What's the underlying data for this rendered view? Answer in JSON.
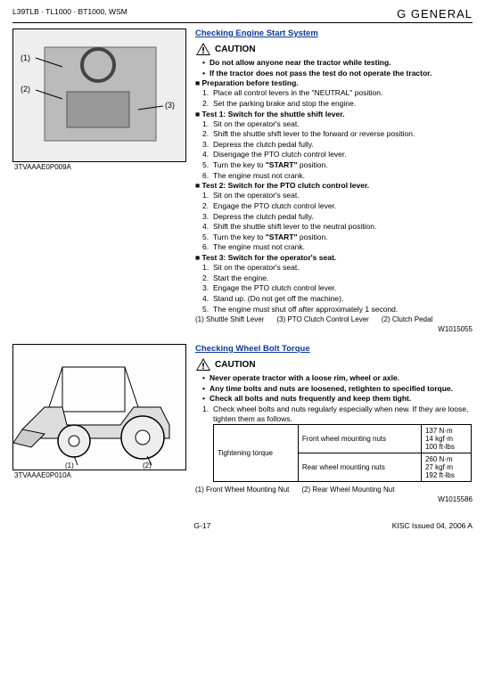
{
  "header": {
    "left": "L39TLB · TL1000 · BT1000, WSM",
    "right": "G  GENERAL"
  },
  "sect1": {
    "title": "Checking Engine Start System",
    "figcode": "3TVAAAE0P009A",
    "caution": "CAUTION",
    "bullets": [
      "Do not allow anyone near the tractor while testing.",
      "If the tractor does not pass the test do not operate the tractor."
    ],
    "prep_label": "Preparation before testing.",
    "prep": [
      "Place all control levers in the \"NEUTRAL\" position.",
      "Set the parking brake and stop the engine."
    ],
    "t1_label": "Test 1: Switch for the shuttle shift lever.",
    "t1": [
      "Sit on the operator's seat.",
      "Shift the shuttle shift lever to the forward or reverse position.",
      "Depress the clutch pedal fully.",
      "Disengage the PTO clutch control lever.",
      "Turn the key to \"START\" position.",
      "The engine must not crank."
    ],
    "t2_label": "Test 2: Switch for the PTO clutch control lever.",
    "t2": [
      "Sit on the operator's seat.",
      "Engage the PTO clutch control lever.",
      "Depress the clutch pedal fully.",
      "Shift the shuttle shift lever to the neutral position.",
      "Turn the key to \"START\" position.",
      "The engine must not crank."
    ],
    "t3_label": "Test 3: Switch for the operator's seat.",
    "t3": [
      "Sit on the operator's seat.",
      "Start the engine.",
      "Engage the PTO clutch control lever.",
      "Stand up.  (Do not get off the machine).",
      "The engine must shut off after approximately 1 second."
    ],
    "legend": [
      "(1)  Shuttle Shift Lever",
      "(3)  PTO Clutch Control Lever",
      "(2)  Clutch Pedal"
    ],
    "code": "W1015055"
  },
  "sect2": {
    "title": "Checking Wheel Bolt Torque",
    "figcode": "3TVAAAE0P010A",
    "caution": "CAUTION",
    "bullets": [
      "Never operate tractor with a loose rim, wheel or axle.",
      "Any time bolts and nuts are loosened, retighten to specified torque.",
      "Check all bolts and nuts frequently and keep them tight."
    ],
    "step": "Check wheel bolts and nuts regularly especially when new.  If they are loose, tighten them as follows.",
    "table": {
      "rowhead": "Tightening torque",
      "r1": "Front wheel mounting nuts",
      "r1v": "137 N·m\n14 kgf·m\n100 ft-lbs",
      "r2": "Rear wheel mounting nuts",
      "r2v": "260 N·m\n27 kgf·m\n192 ft-lbs"
    },
    "legend": [
      "(1)  Front Wheel Mounting Nut",
      "(2)  Rear Wheel Mounting Nut"
    ],
    "code": "W1015586"
  },
  "footer": {
    "page": "G-17",
    "issued": "KISC Issued 04, 2006 A"
  }
}
